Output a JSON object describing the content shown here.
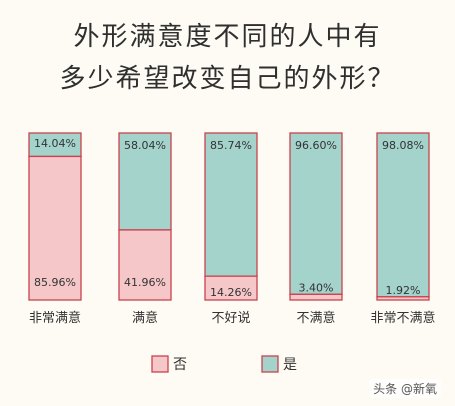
{
  "title_line1": "外形满意度不同的人中有",
  "title_line2": "多少希望改变自己的外形？",
  "watermark": "头条 @新氧",
  "colors": {
    "no": "#f6c7c9",
    "yes": "#a4d3cc",
    "stroke": "#c9434f"
  },
  "chart_data": {
    "type": "bar",
    "stacked": true,
    "categories": [
      "非常满意",
      "满意",
      "不好说",
      "不满意",
      "非常不满意"
    ],
    "series": [
      {
        "name": "否",
        "values": [
          85.96,
          41.96,
          14.26,
          3.4,
          1.92
        ],
        "labels": [
          "85.96%",
          "41.96%",
          "14.26%",
          "3.40%",
          "1.92%"
        ]
      },
      {
        "name": "是",
        "values": [
          14.04,
          58.04,
          85.74,
          96.6,
          98.08
        ],
        "labels": [
          "14.04%",
          "58.04%",
          "85.74%",
          "96.60%",
          "98.08%"
        ]
      }
    ],
    "ylim": [
      0,
      100
    ],
    "legend": "bottom"
  }
}
